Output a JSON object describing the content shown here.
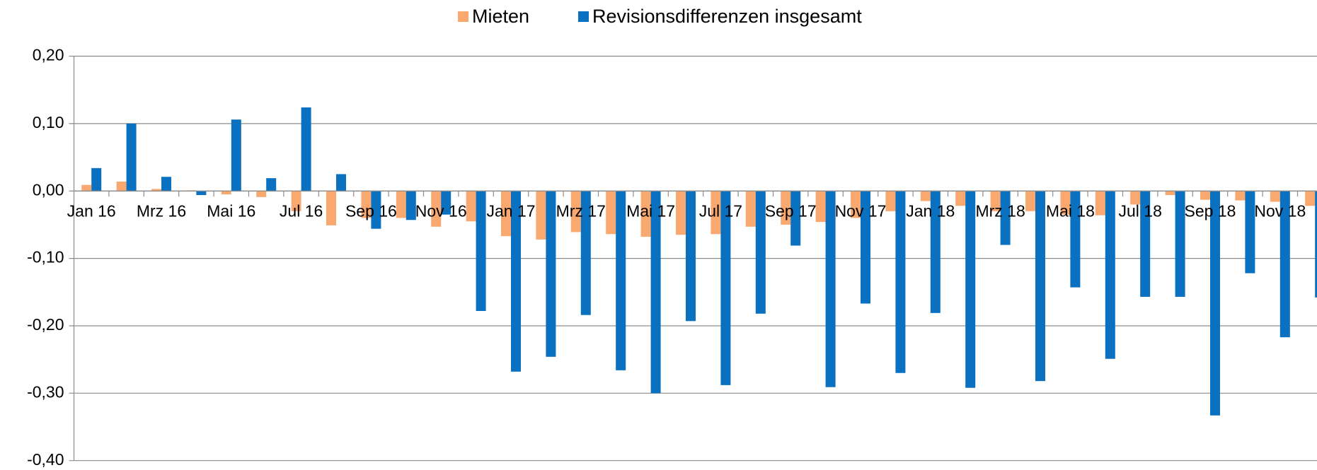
{
  "chart_data": {
    "type": "bar",
    "categories": [
      "Jan 16",
      null,
      "Mrz 16",
      null,
      "Mai 16",
      null,
      "Jul 16",
      null,
      "Sep 16",
      null,
      "Nov 16",
      null,
      "Jan 17",
      null,
      "Mrz 17",
      null,
      "Mai 17",
      null,
      "Jul 17",
      null,
      "Sep 17",
      null,
      "Nov 17",
      null,
      "Jan 18",
      null,
      "Mrz 18",
      null,
      "Mai 18",
      null,
      "Jul 18",
      null,
      "Sep 18",
      null,
      "Nov 18",
      null
    ],
    "series": [
      {
        "name": "Mieten",
        "color": "#f9a870",
        "values": [
          0.009,
          0.014,
          0.003,
          0.001,
          -0.005,
          -0.009,
          -0.03,
          -0.051,
          -0.04,
          -0.04,
          -0.053,
          -0.045,
          -0.067,
          -0.072,
          -0.061,
          -0.064,
          -0.068,
          -0.065,
          -0.064,
          -0.053,
          -0.05,
          -0.046,
          -0.04,
          -0.03,
          -0.015,
          -0.022,
          -0.03,
          -0.03,
          -0.035,
          -0.036,
          -0.02,
          -0.006,
          -0.013,
          -0.014,
          -0.016,
          -0.022
        ]
      },
      {
        "name": "Revisionsdifferenzen insgesamt",
        "color": "#0a70c0",
        "values": [
          0.034,
          0.1,
          0.021,
          -0.006,
          0.106,
          0.019,
          0.124,
          0.025,
          -0.056,
          -0.043,
          -0.035,
          -0.178,
          -0.268,
          -0.246,
          -0.184,
          -0.266,
          -0.3,
          -0.193,
          -0.288,
          -0.182,
          -0.081,
          -0.291,
          -0.167,
          -0.27,
          -0.181,
          -0.292,
          -0.08,
          -0.282,
          -0.143,
          -0.249,
          -0.157,
          -0.157,
          -0.333,
          -0.122,
          -0.217,
          -0.158
        ]
      }
    ],
    "ylim": [
      -0.4,
      0.2
    ],
    "yticks": [
      {
        "value": -0.4,
        "label": "-0,40"
      },
      {
        "value": -0.3,
        "label": "-0,30"
      },
      {
        "value": -0.2,
        "label": "-0,20"
      },
      {
        "value": -0.1,
        "label": "-0,10"
      },
      {
        "value": 0,
        "label": "0,00"
      },
      {
        "value": 0.1,
        "label": "0,10"
      },
      {
        "value": 0.2,
        "label": "0,20"
      }
    ],
    "grid": true,
    "legend": "top"
  }
}
